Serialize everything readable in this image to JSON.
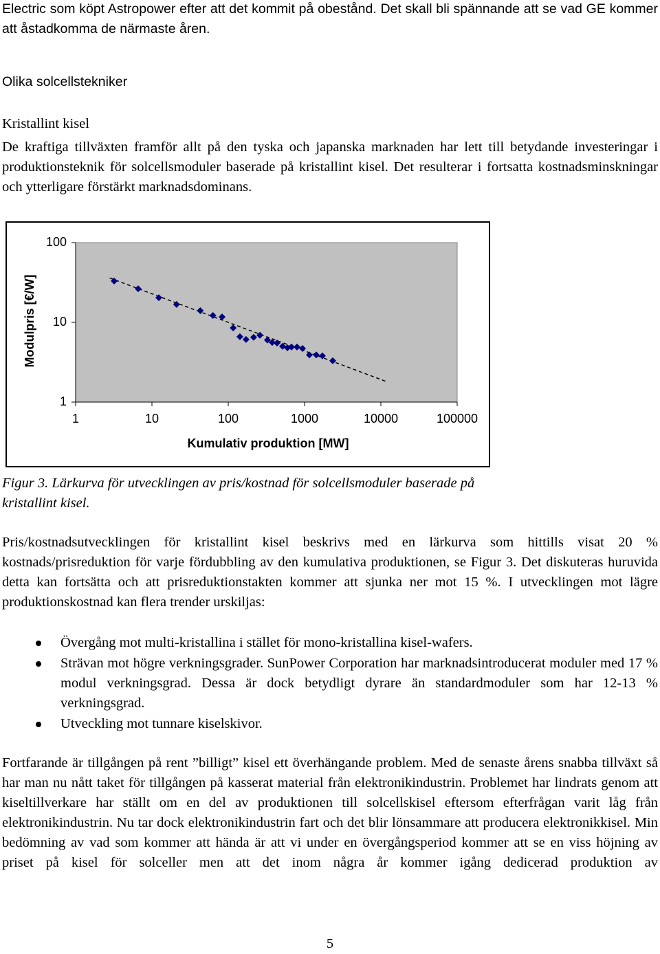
{
  "intro": "Electric som köpt Astropower efter att det kommit på obestånd. Det skall bli spännande att se vad GE kommer att åstadkomma de närmaste åren.",
  "section_title": "Olika solcellstekniker",
  "subsection_title": "Kristallint kisel",
  "paragraph_1": "De kraftiga tillväxten framför allt på den tyska och japanska marknaden har lett till betydande investeringar i produktionsteknik för solcellsmoduler baserade på kristallint kisel. Det resulterar i fortsatta kostnadsminskningar och ytterligare förstärkt marknadsdominans.",
  "chart_data": {
    "type": "scatter",
    "x_label": "Kumulativ produktion [MW]",
    "y_label": "Modulpris [€/W]",
    "x": [
      3.2,
      6.6,
      12.3,
      21,
      43,
      63,
      83,
      116,
      142,
      171,
      215,
      260,
      326,
      377,
      436,
      515,
      596,
      675,
      796,
      940,
      1157,
      1423,
      1714,
      2340
    ],
    "values": [
      33,
      26.4,
      20.4,
      16.8,
      14,
      12.2,
      11.7,
      8.5,
      6.6,
      6.1,
      6.5,
      6.9,
      6,
      5.6,
      5.5,
      5,
      4.8,
      4.9,
      4.9,
      4.7,
      3.9,
      3.9,
      3.8,
      3.3
    ],
    "color": "#000080",
    "trend": {
      "x": [
        2.8,
        12000
      ],
      "values": [
        36,
        1.8
      ],
      "color": "#000000"
    },
    "xscale": "log",
    "yscale": "log",
    "xlim": [
      1,
      100000
    ],
    "ylim": [
      1,
      100
    ],
    "xticks": [
      1,
      10,
      100,
      1000,
      10000,
      100000
    ],
    "yticks": [
      1,
      10,
      100
    ],
    "plot_background": "#c0c0c0"
  },
  "figure_caption": "Figur 3. Lärkurva för utvecklingen av pris/kostnad för solcellsmoduler baserade på kristallint kisel.",
  "paragraph_2": "Pris/kostnadsutvecklingen för kristallint kisel beskrivs med en lärkurva som hittills visat 20 % kostnads/prisreduktion för varje fördubbling av den kumulativa produktionen, se Figur 3. Det diskuteras huruvida detta kan fortsätta och att prisreduktionstakten kommer att sjunka ner mot 15 %. I utvecklingen mot lägre produktionskostnad kan flera trender urskiljas:",
  "bullets": [
    "Övergång mot multi-kristallina i stället för mono-kristallina kisel-wafers.",
    "Strävan mot högre verkningsgrader. SunPower Corporation har marknadsintroducerat moduler med 17 % modul verkningsgrad. Dessa är dock betydligt dyrare än standardmoduler som har 12-13 % verkningsgrad.",
    "Utveckling mot tunnare kiselskivor."
  ],
  "paragraph_3": "Fortfarande är tillgången på rent ”billigt” kisel ett överhängande problem. Med de senaste årens snabba tillväxt så har man nu nått taket för tillgången på kasserat material från elektronikindustrin. Problemet har lindrats genom att kiseltillverkare har ställt om en del av produktionen till solcellskisel eftersom efterfrågan varit låg från elektronikindustrin. Nu tar dock elektronikindustrin fart och det blir lönsammare att producera elektronikkisel. Min bedömning av vad som kommer att hända är att vi under en övergångsperiod kommer att se en viss höjning av priset på kisel för solceller men att det inom några år kommer igång dedicerad produktion av",
  "page_number": "5"
}
